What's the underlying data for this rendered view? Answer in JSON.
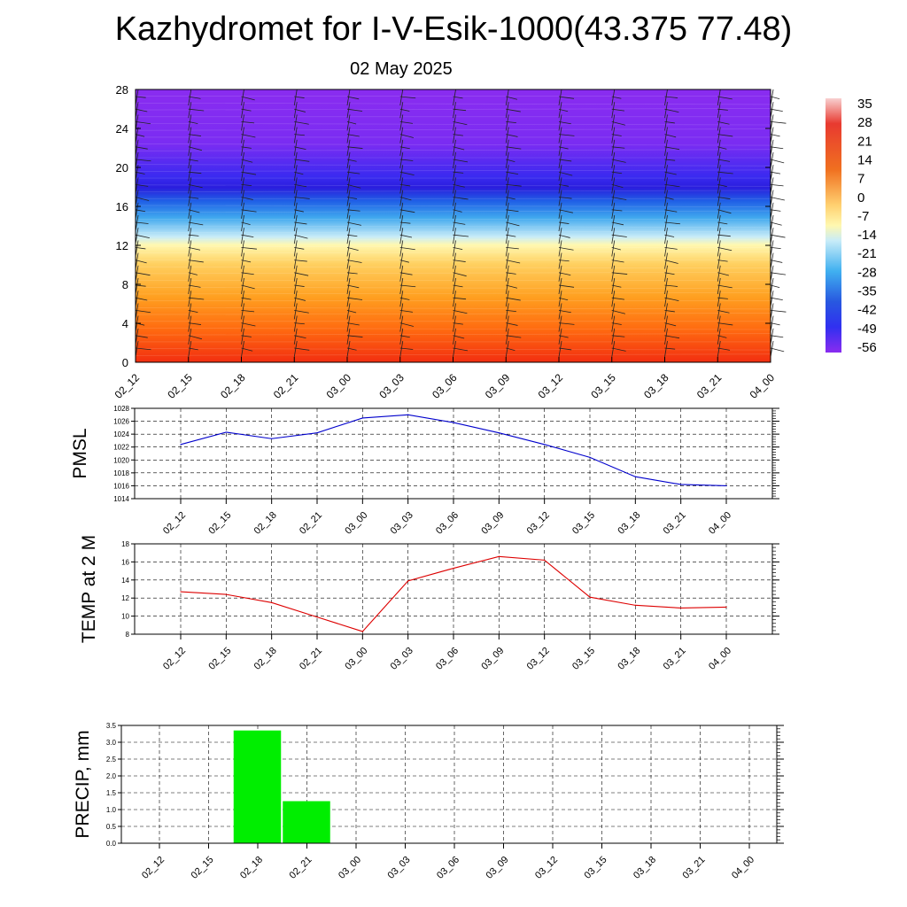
{
  "header": {
    "title": "Kazhydromet for I-V-Esik-1000(43.375 77.48)",
    "subtitle": "02 May 2025"
  },
  "chart_data": [
    {
      "type": "heatmap",
      "title": "",
      "ylim": [
        0,
        28
      ],
      "yticks": [
        0,
        4,
        8,
        12,
        16,
        20,
        24,
        28
      ],
      "xticks": [
        "02_12",
        "02_15",
        "02_18",
        "02_21",
        "03_00",
        "03_03",
        "03_06",
        "03_09",
        "03_12",
        "03_15",
        "03_18",
        "03_21",
        "04_00"
      ],
      "colorbar": {
        "labels": [
          "35",
          "28",
          "21",
          "14",
          "7",
          "0",
          "-7",
          "-14",
          "-21",
          "-28",
          "-35",
          "-42",
          "-49",
          "-56"
        ],
        "colors": [
          "#f4c6c6",
          "#e8342c",
          "#f08030",
          "#ffd070",
          "#fff8b0",
          "#c8ecf8",
          "#60c0f0",
          "#2070e0",
          "#3030f0",
          "#8a2cf0"
        ]
      },
      "wind_barbs": true,
      "value_layers": [
        {
          "height_range": [
            12,
            28
          ],
          "temperature_range": [
            -14,
            -56
          ]
        },
        {
          "height_range": [
            0,
            12
          ],
          "temperature_range": [
            -7,
            21
          ]
        }
      ]
    },
    {
      "type": "line",
      "ylabel": "PMSL",
      "ylim": [
        1014,
        1028
      ],
      "yticks": [
        1014,
        1016,
        1018,
        1020,
        1022,
        1024,
        1026,
        1028
      ],
      "categories": [
        "02_12",
        "02_15",
        "02_18",
        "02_21",
        "03_00",
        "03_03",
        "03_06",
        "03_09",
        "03_12",
        "03_15",
        "03_18",
        "03_21",
        "04_00"
      ],
      "values": [
        1022.4,
        1024.3,
        1023.3,
        1024.2,
        1026.5,
        1027.0,
        1025.8,
        1024.2,
        1022.4,
        1020.4,
        1017.4,
        1016.2,
        1016.0
      ],
      "color": "#0000cc",
      "grid": true
    },
    {
      "type": "line",
      "ylabel": "TEMP at 2 M",
      "ylim": [
        8,
        18
      ],
      "yticks": [
        8,
        10,
        12,
        14,
        16,
        18
      ],
      "categories": [
        "02_12",
        "02_15",
        "02_18",
        "02_21",
        "03_00",
        "03_03",
        "03_06",
        "03_09",
        "03_12",
        "03_15",
        "03_18",
        "03_21",
        "04_00"
      ],
      "values": [
        12.7,
        12.4,
        11.5,
        9.9,
        8.3,
        13.9,
        15.3,
        16.6,
        16.2,
        12.1,
        11.2,
        10.9,
        11.0
      ],
      "color": "#dd0000",
      "grid": true
    },
    {
      "type": "bar",
      "ylabel": "PRECIP, mm",
      "ylim": [
        0,
        3.5
      ],
      "yticks": [
        "0.0",
        "0.5",
        "1.0",
        "1.5",
        "2.0",
        "2.5",
        "3.0",
        "3.5"
      ],
      "categories": [
        "02_12",
        "02_15",
        "02_18",
        "02_21",
        "03_00",
        "03_03",
        "03_06",
        "03_09",
        "03_12",
        "03_15",
        "03_18",
        "03_21",
        "04_00"
      ],
      "values": [
        0,
        3.35,
        1.25,
        0,
        0,
        0,
        0,
        0,
        0,
        0,
        0,
        0,
        0
      ],
      "color": "#00ee00",
      "grid": true
    }
  ]
}
